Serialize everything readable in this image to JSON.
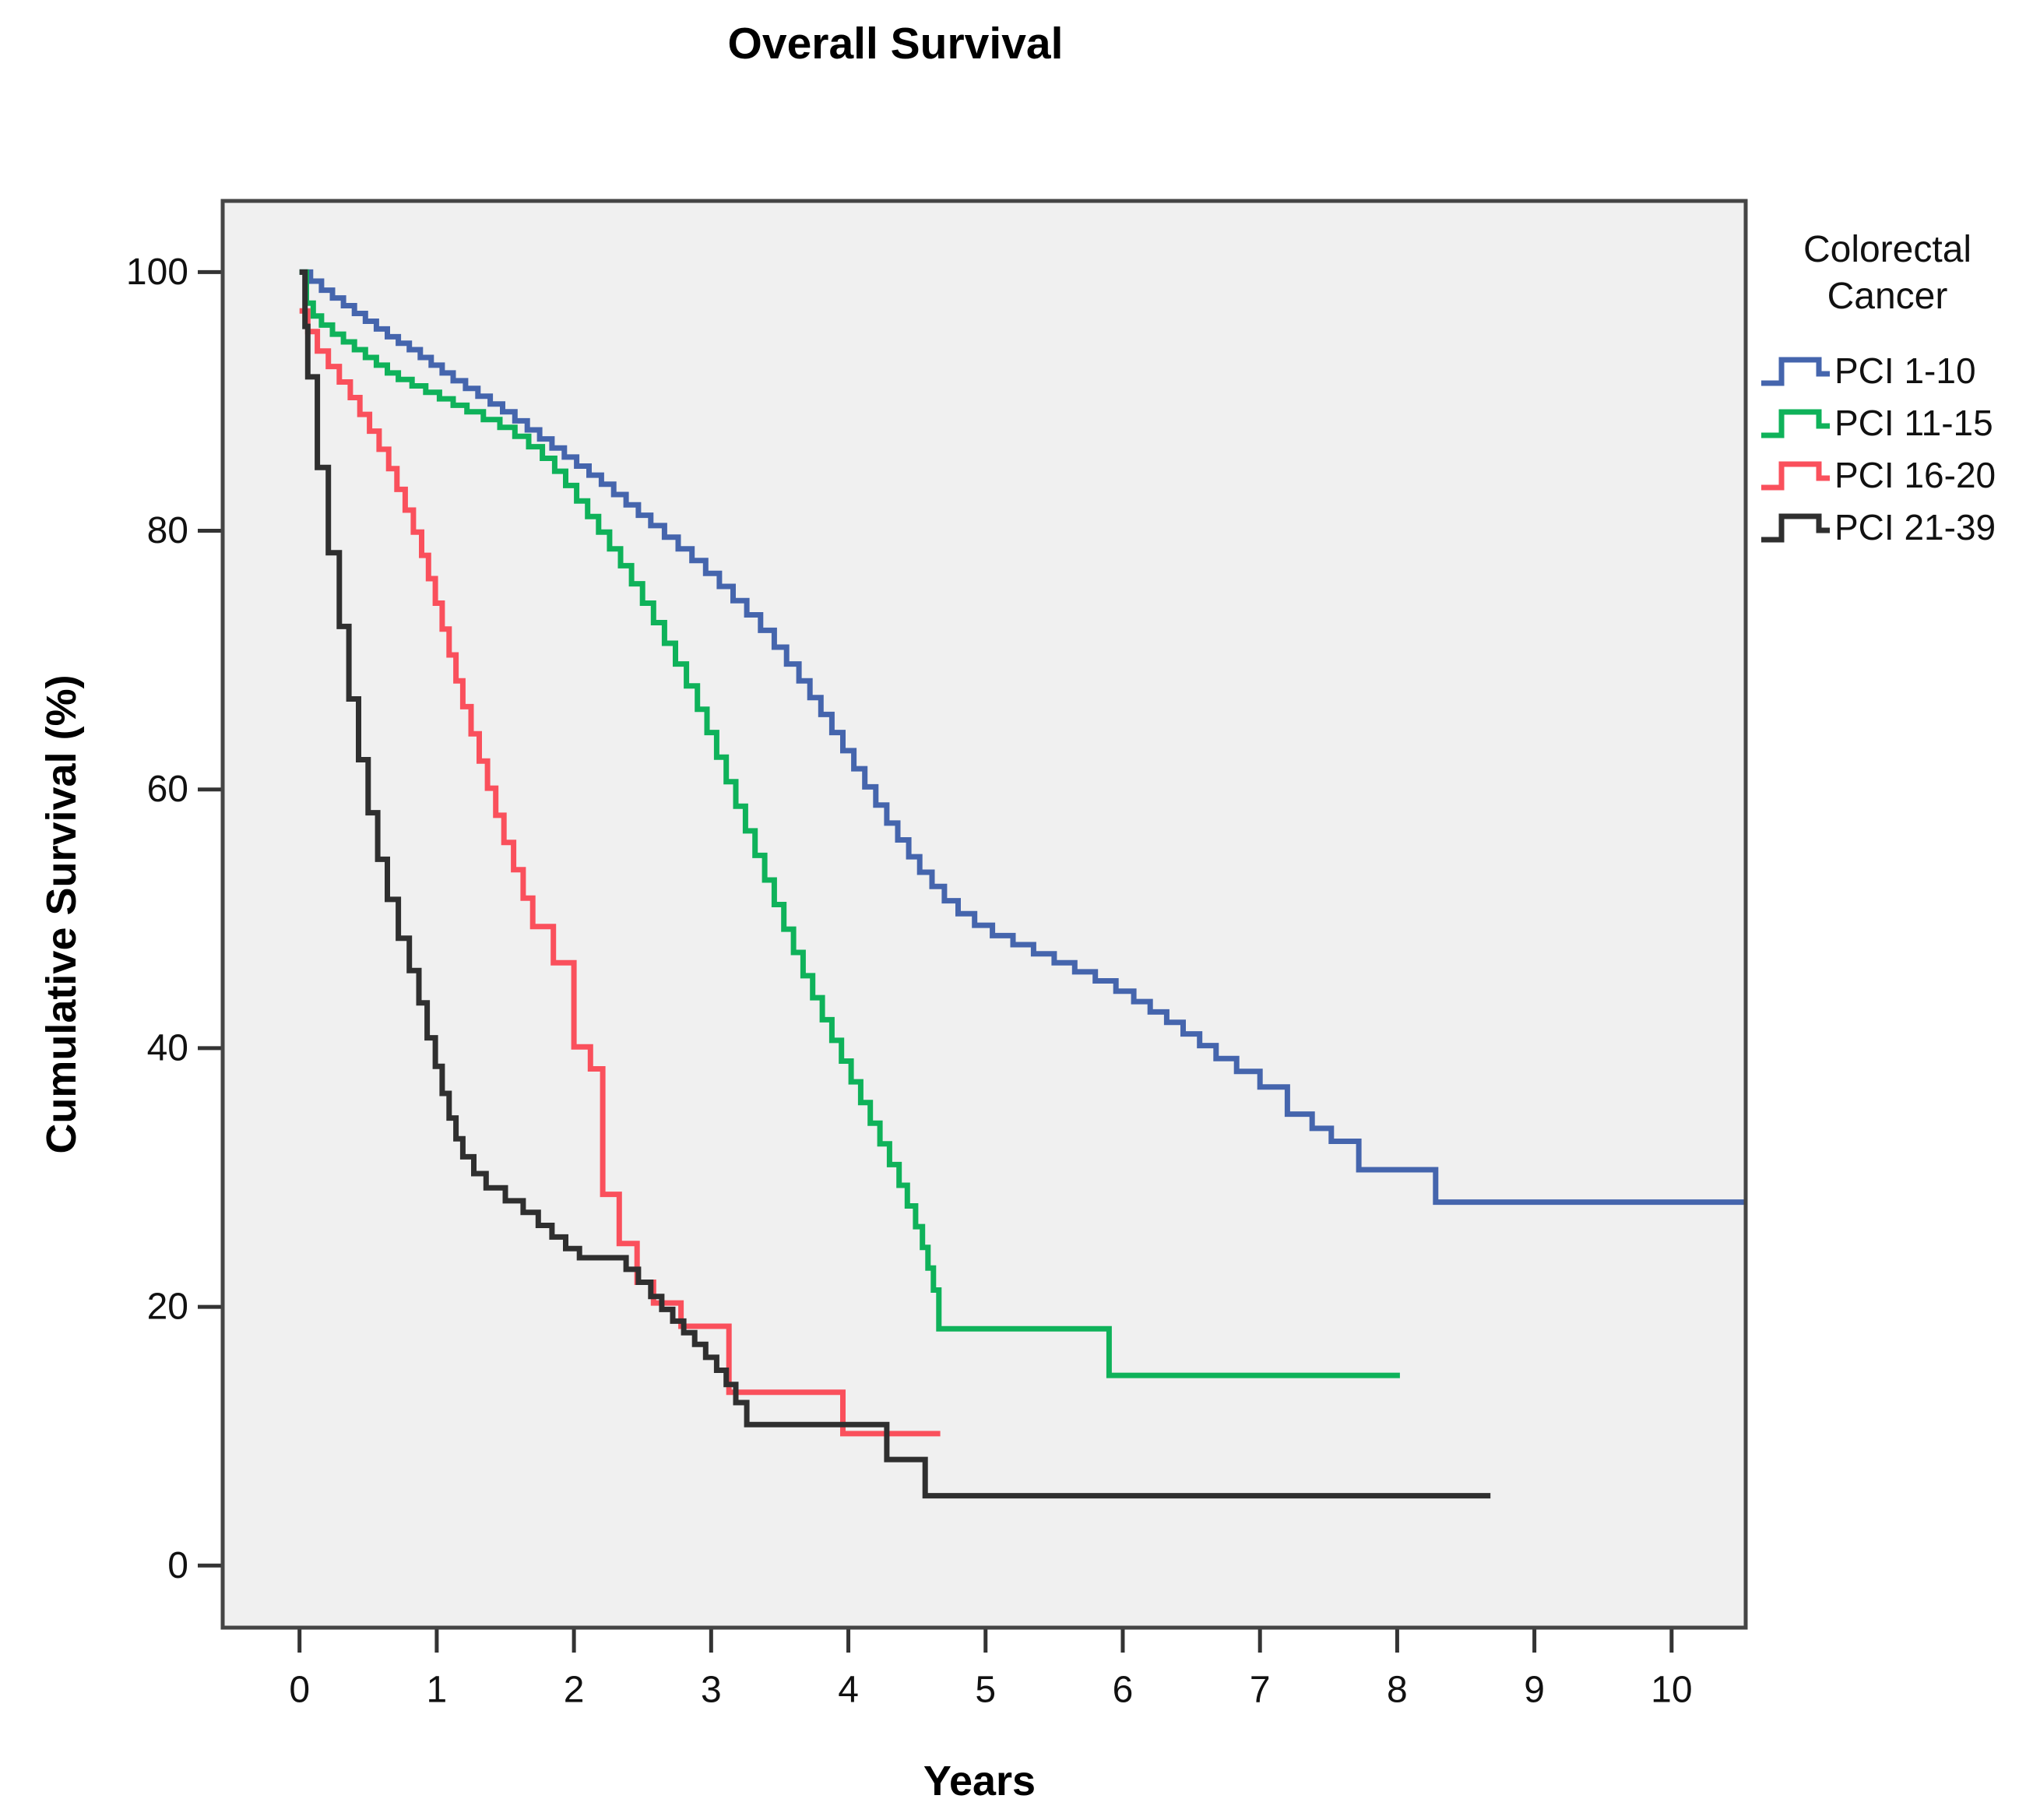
{
  "chart_data": {
    "type": "line",
    "subtype": "kaplan-meier-step",
    "title": "Overall Survival",
    "xlabel": "Years",
    "ylabel": "Cumulative Survival (%)",
    "grid": false,
    "plot_background": "#f0f0f0",
    "frame_color": "#454545",
    "tick_color": "#333333",
    "xlim": [
      -0.56,
      10.54
    ],
    "ylim": [
      -4.8,
      105.5
    ],
    "x_ticks": [
      0,
      1,
      2,
      3,
      4,
      5,
      6,
      7,
      8,
      9,
      10
    ],
    "y_ticks": [
      0,
      20,
      40,
      60,
      80,
      100
    ],
    "legend": {
      "position": "right",
      "title_lines": [
        "Colorectal",
        "Cancer"
      ]
    },
    "series": [
      {
        "name": "PCI 1-10",
        "color": "#4565ad",
        "end_t": 10.54,
        "points": [
          [
            0,
            100
          ],
          [
            0.08,
            99.3
          ],
          [
            0.16,
            98.6
          ],
          [
            0.24,
            98.0
          ],
          [
            0.32,
            97.4
          ],
          [
            0.4,
            96.8
          ],
          [
            0.48,
            96.2
          ],
          [
            0.56,
            95.6
          ],
          [
            0.64,
            95.0
          ],
          [
            0.72,
            94.5
          ],
          [
            0.8,
            94.0
          ],
          [
            0.88,
            93.4
          ],
          [
            0.96,
            92.8
          ],
          [
            1.04,
            92.2
          ],
          [
            1.12,
            91.6
          ],
          [
            1.21,
            91.0
          ],
          [
            1.3,
            90.4
          ],
          [
            1.39,
            89.8
          ],
          [
            1.48,
            89.2
          ],
          [
            1.57,
            88.5
          ],
          [
            1.66,
            87.8
          ],
          [
            1.75,
            87.1
          ],
          [
            1.84,
            86.4
          ],
          [
            1.93,
            85.7
          ],
          [
            2.02,
            85.0
          ],
          [
            2.11,
            84.3
          ],
          [
            2.2,
            83.6
          ],
          [
            2.29,
            82.8
          ],
          [
            2.38,
            82.0
          ],
          [
            2.47,
            81.2
          ],
          [
            2.56,
            80.4
          ],
          [
            2.66,
            79.5
          ],
          [
            2.76,
            78.6
          ],
          [
            2.86,
            77.7
          ],
          [
            2.96,
            76.7
          ],
          [
            3.06,
            75.7
          ],
          [
            3.16,
            74.6
          ],
          [
            3.26,
            73.5
          ],
          [
            3.36,
            72.3
          ],
          [
            3.46,
            71.0
          ],
          [
            3.55,
            69.7
          ],
          [
            3.64,
            68.4
          ],
          [
            3.72,
            67.1
          ],
          [
            3.8,
            65.8
          ],
          [
            3.88,
            64.4
          ],
          [
            3.96,
            63.0
          ],
          [
            4.04,
            61.6
          ],
          [
            4.12,
            60.2
          ],
          [
            4.2,
            58.8
          ],
          [
            4.28,
            57.4
          ],
          [
            4.36,
            56.1
          ],
          [
            4.44,
            54.8
          ],
          [
            4.52,
            53.6
          ],
          [
            4.61,
            52.5
          ],
          [
            4.7,
            51.4
          ],
          [
            4.8,
            50.4
          ],
          [
            4.92,
            49.5
          ],
          [
            5.05,
            48.7
          ],
          [
            5.2,
            48.0
          ],
          [
            5.35,
            47.3
          ],
          [
            5.5,
            46.6
          ],
          [
            5.65,
            45.9
          ],
          [
            5.8,
            45.2
          ],
          [
            5.95,
            44.4
          ],
          [
            6.08,
            43.6
          ],
          [
            6.2,
            42.8
          ],
          [
            6.32,
            42.0
          ],
          [
            6.44,
            41.1
          ],
          [
            6.56,
            40.2
          ],
          [
            6.68,
            39.2
          ],
          [
            6.83,
            38.2
          ],
          [
            7.0,
            37.0
          ],
          [
            7.2,
            34.9
          ],
          [
            7.38,
            33.8
          ],
          [
            7.52,
            32.8
          ],
          [
            7.72,
            30.6
          ],
          [
            8.28,
            28.1
          ]
        ]
      },
      {
        "name": "PCI 11-15",
        "color": "#0fb25a",
        "end_t": 8.02,
        "points": [
          [
            0,
            100
          ],
          [
            0.05,
            97.6
          ],
          [
            0.1,
            96.6
          ],
          [
            0.16,
            95.9
          ],
          [
            0.24,
            95.2
          ],
          [
            0.32,
            94.6
          ],
          [
            0.4,
            94.0
          ],
          [
            0.48,
            93.4
          ],
          [
            0.56,
            92.8
          ],
          [
            0.64,
            92.2
          ],
          [
            0.72,
            91.7
          ],
          [
            0.82,
            91.2
          ],
          [
            0.92,
            90.7
          ],
          [
            1.02,
            90.2
          ],
          [
            1.12,
            89.7
          ],
          [
            1.22,
            89.2
          ],
          [
            1.34,
            88.6
          ],
          [
            1.46,
            88.0
          ],
          [
            1.57,
            87.3
          ],
          [
            1.67,
            86.5
          ],
          [
            1.77,
            85.6
          ],
          [
            1.86,
            84.6
          ],
          [
            1.94,
            83.5
          ],
          [
            2.02,
            82.3
          ],
          [
            2.1,
            81.1
          ],
          [
            2.18,
            79.9
          ],
          [
            2.26,
            78.6
          ],
          [
            2.34,
            77.3
          ],
          [
            2.42,
            75.9
          ],
          [
            2.5,
            74.4
          ],
          [
            2.58,
            72.9
          ],
          [
            2.66,
            71.3
          ],
          [
            2.74,
            69.7
          ],
          [
            2.82,
            68.0
          ],
          [
            2.9,
            66.2
          ],
          [
            2.97,
            64.4
          ],
          [
            3.04,
            62.5
          ],
          [
            3.11,
            60.6
          ],
          [
            3.18,
            58.7
          ],
          [
            3.25,
            56.8
          ],
          [
            3.32,
            54.9
          ],
          [
            3.39,
            53.0
          ],
          [
            3.46,
            51.1
          ],
          [
            3.53,
            49.2
          ],
          [
            3.6,
            47.4
          ],
          [
            3.67,
            45.6
          ],
          [
            3.74,
            43.9
          ],
          [
            3.81,
            42.2
          ],
          [
            3.88,
            40.6
          ],
          [
            3.95,
            39.0
          ],
          [
            4.02,
            37.4
          ],
          [
            4.09,
            35.8
          ],
          [
            4.16,
            34.2
          ],
          [
            4.23,
            32.6
          ],
          [
            4.3,
            31.0
          ],
          [
            4.37,
            29.4
          ],
          [
            4.43,
            27.8
          ],
          [
            4.49,
            26.2
          ],
          [
            4.54,
            24.6
          ],
          [
            4.58,
            23.0
          ],
          [
            4.62,
            21.3
          ],
          [
            4.66,
            18.3
          ],
          [
            5.9,
            14.7
          ]
        ]
      },
      {
        "name": "PCI 16-20",
        "color": "#fa505c",
        "end_t": 4.67,
        "points": [
          [
            0,
            97.0
          ],
          [
            0.06,
            95.4
          ],
          [
            0.13,
            93.9
          ],
          [
            0.21,
            92.7
          ],
          [
            0.29,
            91.5
          ],
          [
            0.37,
            90.3
          ],
          [
            0.44,
            89.0
          ],
          [
            0.51,
            87.7
          ],
          [
            0.58,
            86.3
          ],
          [
            0.65,
            84.8
          ],
          [
            0.71,
            83.2
          ],
          [
            0.77,
            81.6
          ],
          [
            0.83,
            79.9
          ],
          [
            0.89,
            78.1
          ],
          [
            0.94,
            76.3
          ],
          [
            0.99,
            74.4
          ],
          [
            1.04,
            72.4
          ],
          [
            1.09,
            70.4
          ],
          [
            1.14,
            68.4
          ],
          [
            1.19,
            66.4
          ],
          [
            1.25,
            64.3
          ],
          [
            1.31,
            62.2
          ],
          [
            1.37,
            60.1
          ],
          [
            1.43,
            58.0
          ],
          [
            1.49,
            55.9
          ],
          [
            1.56,
            53.8
          ],
          [
            1.63,
            51.6
          ],
          [
            1.7,
            49.4
          ],
          [
            1.85,
            46.6
          ],
          [
            2.0,
            40.1
          ],
          [
            2.12,
            38.4
          ],
          [
            2.21,
            28.7
          ],
          [
            2.33,
            24.9
          ],
          [
            2.46,
            21.9
          ],
          [
            2.58,
            20.3
          ],
          [
            2.78,
            18.5
          ],
          [
            3.13,
            13.4
          ],
          [
            3.96,
            10.2
          ]
        ]
      },
      {
        "name": "PCI 21-39",
        "color": "#2f2f2f",
        "end_t": 8.68,
        "points": [
          [
            0,
            100
          ],
          [
            0.04,
            95.8
          ],
          [
            0.06,
            91.9
          ],
          [
            0.13,
            84.9
          ],
          [
            0.21,
            78.3
          ],
          [
            0.29,
            72.6
          ],
          [
            0.36,
            67.0
          ],
          [
            0.43,
            62.3
          ],
          [
            0.5,
            58.2
          ],
          [
            0.57,
            54.6
          ],
          [
            0.64,
            51.5
          ],
          [
            0.72,
            48.5
          ],
          [
            0.8,
            46.0
          ],
          [
            0.87,
            43.5
          ],
          [
            0.93,
            40.8
          ],
          [
            0.99,
            38.6
          ],
          [
            1.04,
            36.5
          ],
          [
            1.09,
            34.6
          ],
          [
            1.14,
            33.0
          ],
          [
            1.19,
            31.6
          ],
          [
            1.27,
            30.3
          ],
          [
            1.36,
            29.2
          ],
          [
            1.5,
            28.2
          ],
          [
            1.63,
            27.3
          ],
          [
            1.74,
            26.3
          ],
          [
            1.84,
            25.4
          ],
          [
            1.94,
            24.5
          ],
          [
            2.04,
            23.8
          ],
          [
            2.38,
            22.9
          ],
          [
            2.47,
            21.9
          ],
          [
            2.56,
            20.8
          ],
          [
            2.64,
            19.8
          ],
          [
            2.72,
            18.9
          ],
          [
            2.8,
            18.0
          ],
          [
            2.88,
            17.1
          ],
          [
            2.96,
            16.1
          ],
          [
            3.04,
            15.1
          ],
          [
            3.11,
            14.0
          ],
          [
            3.18,
            12.6
          ],
          [
            3.26,
            10.9
          ],
          [
            4.28,
            8.2
          ],
          [
            4.56,
            5.4
          ]
        ]
      }
    ]
  }
}
